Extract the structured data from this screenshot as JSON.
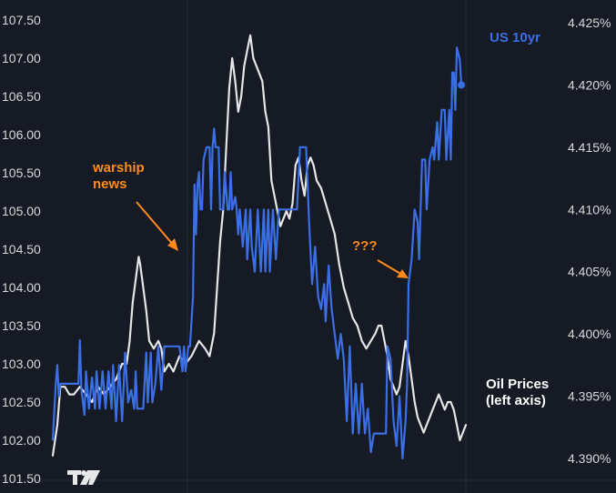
{
  "chart_data": {
    "type": "line",
    "background": "#161a25",
    "grid": true,
    "series": [
      {
        "name": "Oil Prices (left axis)",
        "axis": "left",
        "color": "#e6e6e6",
        "values": [
          [
            0,
            101.8
          ],
          [
            3,
            102.2
          ],
          [
            5,
            102.7
          ],
          [
            8,
            102.7
          ],
          [
            11,
            102.6
          ],
          [
            14,
            102.6
          ],
          [
            18,
            102.7
          ],
          [
            22,
            102.6
          ],
          [
            26,
            102.5
          ],
          [
            30,
            102.7
          ],
          [
            34,
            102.6
          ],
          [
            38,
            102.7
          ],
          [
            42,
            102.8
          ],
          [
            46,
            103.0
          ],
          [
            49,
            103.0
          ],
          [
            51,
            103.3
          ],
          [
            53,
            103.8
          ],
          [
            55,
            104.1
          ],
          [
            57,
            104.4
          ],
          [
            58,
            104.3
          ],
          [
            60,
            104.0
          ],
          [
            62,
            103.7
          ],
          [
            64,
            103.3
          ],
          [
            67,
            103.2
          ],
          [
            70,
            103.3
          ],
          [
            72,
            103.2
          ],
          [
            74,
            102.9
          ],
          [
            77,
            103.0
          ],
          [
            80,
            102.9
          ],
          [
            84,
            103.1
          ],
          [
            88,
            103.0
          ],
          [
            92,
            103.1
          ],
          [
            97,
            103.3
          ],
          [
            101,
            103.2
          ],
          [
            104,
            103.1
          ],
          [
            107,
            103.4
          ],
          [
            109,
            104.0
          ],
          [
            111,
            104.6
          ],
          [
            113,
            105.0
          ],
          [
            115,
            105.8
          ],
          [
            117,
            106.6
          ],
          [
            119,
            107.0
          ],
          [
            121,
            106.7
          ],
          [
            123,
            106.3
          ],
          [
            125,
            106.5
          ],
          [
            127,
            106.9
          ],
          [
            129,
            107.1
          ],
          [
            131,
            107.3
          ],
          [
            133,
            107.0
          ],
          [
            135,
            106.9
          ],
          [
            137,
            106.8
          ],
          [
            139,
            106.7
          ],
          [
            141,
            106.3
          ],
          [
            143,
            106.1
          ],
          [
            145,
            105.4
          ],
          [
            147,
            105.2
          ],
          [
            149,
            105.0
          ],
          [
            151,
            104.8
          ],
          [
            153,
            104.9
          ],
          [
            155,
            105.0
          ],
          [
            157,
            104.9
          ],
          [
            159,
            105.1
          ],
          [
            161,
            105.6
          ],
          [
            163,
            105.7
          ],
          [
            165,
            105.4
          ],
          [
            167,
            105.2
          ],
          [
            169,
            105.6
          ],
          [
            171,
            105.7
          ],
          [
            173,
            105.6
          ],
          [
            175,
            105.4
          ],
          [
            178,
            105.3
          ],
          [
            181,
            105.1
          ],
          [
            184,
            104.9
          ],
          [
            187,
            104.7
          ],
          [
            190,
            104.3
          ],
          [
            193,
            104.0
          ],
          [
            196,
            103.8
          ],
          [
            199,
            103.6
          ],
          [
            202,
            103.5
          ],
          [
            205,
            103.3
          ],
          [
            208,
            103.2
          ],
          [
            211,
            103.3
          ],
          [
            214,
            103.4
          ],
          [
            216,
            103.5
          ],
          [
            218,
            103.5
          ],
          [
            220,
            103.3
          ],
          [
            222,
            103.1
          ],
          [
            224,
            102.8
          ],
          [
            226,
            102.7
          ],
          [
            228,
            102.6
          ],
          [
            230,
            102.7
          ],
          [
            232,
            103.0
          ],
          [
            234,
            103.3
          ],
          [
            236,
            103.1
          ],
          [
            238,
            102.8
          ],
          [
            240,
            102.5
          ],
          [
            242,
            102.3
          ],
          [
            244,
            102.2
          ],
          [
            246,
            102.1
          ],
          [
            248,
            102.2
          ],
          [
            250,
            102.3
          ],
          [
            252,
            102.4
          ],
          [
            254,
            102.5
          ],
          [
            256,
            102.6
          ],
          [
            258,
            102.5
          ],
          [
            260,
            102.4
          ],
          [
            262,
            102.5
          ],
          [
            264,
            102.5
          ],
          [
            266,
            102.4
          ],
          [
            268,
            102.2
          ],
          [
            270,
            102.0
          ],
          [
            272,
            102.1
          ],
          [
            274,
            102.2
          ]
        ]
      },
      {
        "name": "US 10yr",
        "axis": "right",
        "color": "#3b6fe6",
        "values": [
          [
            0,
            4.3915
          ],
          [
            2,
            4.396
          ],
          [
            3,
            4.3975
          ],
          [
            4,
            4.395
          ],
          [
            5,
            4.396
          ],
          [
            7,
            4.396
          ],
          [
            9,
            4.396
          ],
          [
            11,
            4.396
          ],
          [
            13,
            4.396
          ],
          [
            15,
            4.396
          ],
          [
            17,
            4.396
          ],
          [
            18,
            4.3995
          ],
          [
            19,
            4.3955
          ],
          [
            21,
            4.3935
          ],
          [
            22,
            4.397
          ],
          [
            24,
            4.394
          ],
          [
            26,
            4.3965
          ],
          [
            28,
            4.394
          ],
          [
            29,
            4.397
          ],
          [
            31,
            4.394
          ],
          [
            33,
            4.397
          ],
          [
            35,
            4.394
          ],
          [
            37,
            4.397
          ],
          [
            39,
            4.394
          ],
          [
            40,
            4.3975
          ],
          [
            42,
            4.393
          ],
          [
            44,
            4.3975
          ],
          [
            46,
            4.393
          ],
          [
            48,
            4.3985
          ],
          [
            50,
            4.3945
          ],
          [
            52,
            4.3955
          ],
          [
            54,
            4.394
          ],
          [
            55,
            4.397
          ],
          [
            56,
            4.394
          ],
          [
            58,
            4.394
          ],
          [
            60,
            4.394
          ],
          [
            62,
            4.3985
          ],
          [
            63,
            4.3945
          ],
          [
            65,
            4.3985
          ],
          [
            66,
            4.3945
          ],
          [
            68,
            4.396
          ],
          [
            70,
            4.399
          ],
          [
            72,
            4.3955
          ],
          [
            74,
            4.399
          ],
          [
            76,
            4.399
          ],
          [
            78,
            4.399
          ],
          [
            80,
            4.399
          ],
          [
            82,
            4.399
          ],
          [
            84,
            4.399
          ],
          [
            86,
            4.397
          ],
          [
            87,
            4.399
          ],
          [
            88,
            4.397
          ],
          [
            90,
            4.399
          ],
          [
            91,
            4.399
          ],
          [
            93,
            4.403
          ],
          [
            94,
            4.412
          ],
          [
            95,
            4.408
          ],
          [
            96,
            4.412
          ],
          [
            97,
            4.413
          ],
          [
            98,
            4.41
          ],
          [
            99,
            4.41
          ],
          [
            100,
            4.414
          ],
          [
            102,
            4.415
          ],
          [
            104,
            4.415
          ],
          [
            105,
            4.41
          ],
          [
            106,
            4.415
          ],
          [
            107,
            4.4165
          ],
          [
            108,
            4.415
          ],
          [
            110,
            4.415
          ],
          [
            111,
            4.41
          ],
          [
            113,
            4.41
          ],
          [
            114,
            4.413
          ],
          [
            116,
            4.41
          ],
          [
            117,
            4.41
          ],
          [
            118,
            4.413
          ],
          [
            119,
            4.41
          ],
          [
            121,
            4.411
          ],
          [
            122,
            4.41
          ],
          [
            123,
            4.408
          ],
          [
            124,
            4.41
          ],
          [
            126,
            4.407
          ],
          [
            128,
            4.41
          ],
          [
            129,
            4.406
          ],
          [
            131,
            4.41
          ],
          [
            132,
            4.407
          ],
          [
            134,
            4.405
          ],
          [
            136,
            4.41
          ],
          [
            138,
            4.405
          ],
          [
            140,
            4.41
          ],
          [
            141,
            4.405
          ],
          [
            143,
            4.41
          ],
          [
            144,
            4.405
          ],
          [
            146,
            4.41
          ],
          [
            148,
            4.406
          ],
          [
            150,
            4.41
          ],
          [
            152,
            4.41
          ],
          [
            154,
            4.41
          ],
          [
            156,
            4.41
          ],
          [
            158,
            4.41
          ],
          [
            160,
            4.41
          ],
          [
            162,
            4.41
          ],
          [
            164,
            4.415
          ],
          [
            166,
            4.415
          ],
          [
            168,
            4.415
          ],
          [
            170,
            4.409
          ],
          [
            172,
            4.404
          ],
          [
            174,
            4.407
          ],
          [
            176,
            4.403
          ],
          [
            178,
            4.402
          ],
          [
            180,
            4.404
          ],
          [
            181,
            4.401
          ],
          [
            183,
            4.4055
          ],
          [
            185,
            4.402
          ],
          [
            187,
            4.4
          ],
          [
            189,
            4.398
          ],
          [
            191,
            4.4
          ],
          [
            193,
            4.398
          ],
          [
            195,
            4.393
          ],
          [
            197,
            4.399
          ],
          [
            199,
            4.392
          ],
          [
            201,
            4.396
          ],
          [
            203,
            4.392
          ],
          [
            205,
            4.396
          ],
          [
            207,
            4.392
          ],
          [
            209,
            4.394
          ],
          [
            211,
            4.3905
          ],
          [
            213,
            4.392
          ],
          [
            215,
            4.392
          ],
          [
            217,
            4.392
          ],
          [
            219,
            4.392
          ],
          [
            221,
            4.392
          ],
          [
            222,
            4.399
          ],
          [
            224,
            4.398
          ],
          [
            226,
            4.393
          ],
          [
            228,
            4.391
          ],
          [
            230,
            4.395
          ],
          [
            232,
            4.39
          ],
          [
            234,
            4.393
          ],
          [
            235,
            4.396
          ],
          [
            236,
            4.404
          ],
          [
            238,
            4.406
          ],
          [
            240,
            4.41
          ],
          [
            242,
            4.409
          ],
          [
            243,
            4.406
          ],
          [
            245,
            4.414
          ],
          [
            247,
            4.414
          ],
          [
            248,
            4.41
          ],
          [
            250,
            4.414
          ],
          [
            252,
            4.415
          ],
          [
            253,
            4.414
          ],
          [
            255,
            4.417
          ],
          [
            256,
            4.414
          ],
          [
            258,
            4.418
          ],
          [
            260,
            4.418
          ],
          [
            261,
            4.414
          ],
          [
            263,
            4.418
          ],
          [
            264,
            4.414
          ],
          [
            265,
            4.421
          ],
          [
            266,
            4.421
          ],
          [
            267,
            4.418
          ],
          [
            268,
            4.423
          ],
          [
            270,
            4.422
          ],
          [
            271,
            4.42
          ]
        ]
      }
    ],
    "left_axis": {
      "ticks": [
        "107.50",
        "107.00",
        "106.50",
        "106.00",
        "105.50",
        "105.00",
        "104.50",
        "104.00",
        "103.50",
        "103.00",
        "102.50",
        "102.00",
        "101.50"
      ],
      "ylim": [
        101.5,
        107.5
      ]
    },
    "right_axis": {
      "ticks": [
        "4.425%",
        "4.420%",
        "4.415%",
        "4.410%",
        "4.405%",
        "4.400%",
        "4.395%",
        "4.390%"
      ],
      "ylim": [
        4.39,
        4.425
      ]
    },
    "x_range": [
      0,
      274
    ],
    "annotations": [
      {
        "text": "warship\nnews",
        "color": "#ff8c1a"
      },
      {
        "text": "???",
        "color": "#ff8c1a"
      }
    ],
    "legend_labels": [
      {
        "text": "US 10yr",
        "color": "#3b6fe6"
      },
      {
        "text": "Oil Prices\n(left axis)",
        "color": "#ffffff"
      }
    ],
    "logo": "TradingView"
  }
}
